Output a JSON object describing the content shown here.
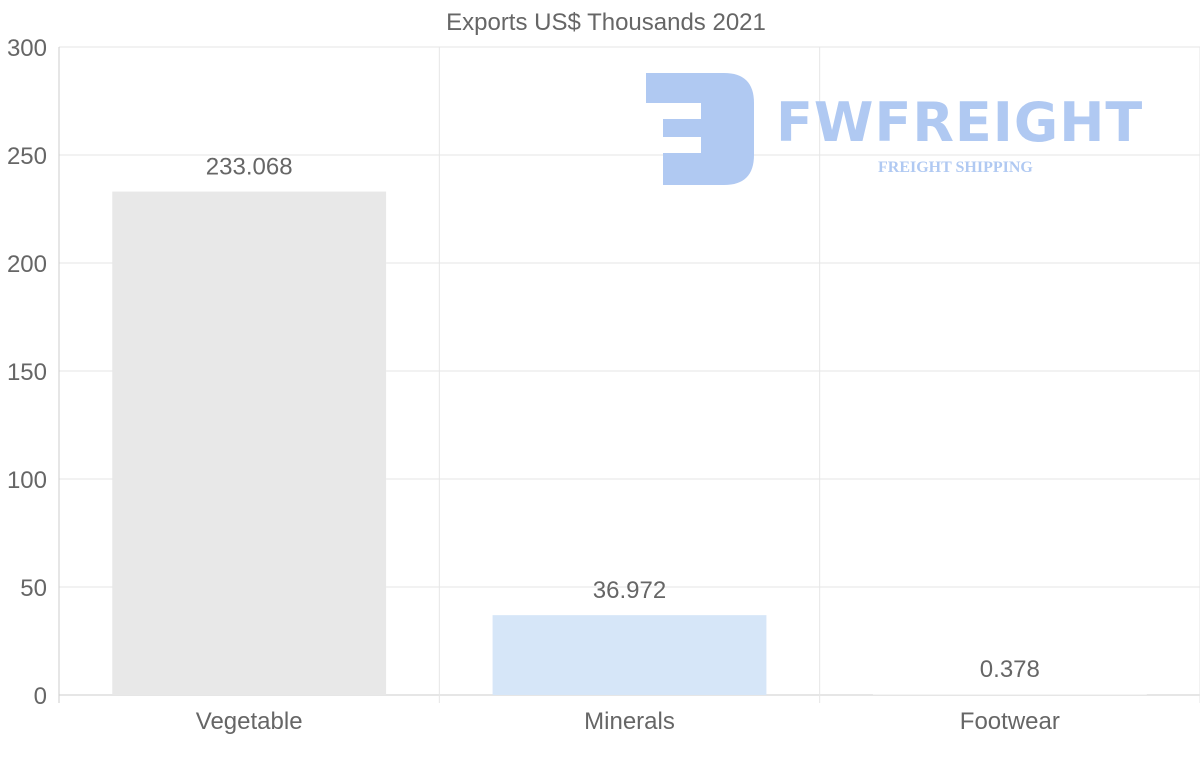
{
  "chart_data": {
    "type": "bar",
    "title": "Exports US$ Thousands 2021",
    "categories": [
      "Vegetable",
      "Minerals",
      "Footwear"
    ],
    "values": [
      233.068,
      36.972,
      0.378
    ],
    "value_labels": [
      "233.068",
      "36.972",
      "0.378"
    ],
    "bar_colors": [
      "#e8e8e8",
      "#d6e6f8",
      "#f2f2f2"
    ],
    "xlabel": "",
    "ylabel": "",
    "ylim": [
      0,
      300
    ],
    "yticks": [
      0,
      50,
      100,
      150,
      200,
      250,
      300
    ],
    "grid": true,
    "legend": "none"
  },
  "watermark": {
    "name": "FWFREIGHT",
    "tagline": "FREIGHT SHIPPING",
    "color": "#b0c9f2"
  }
}
